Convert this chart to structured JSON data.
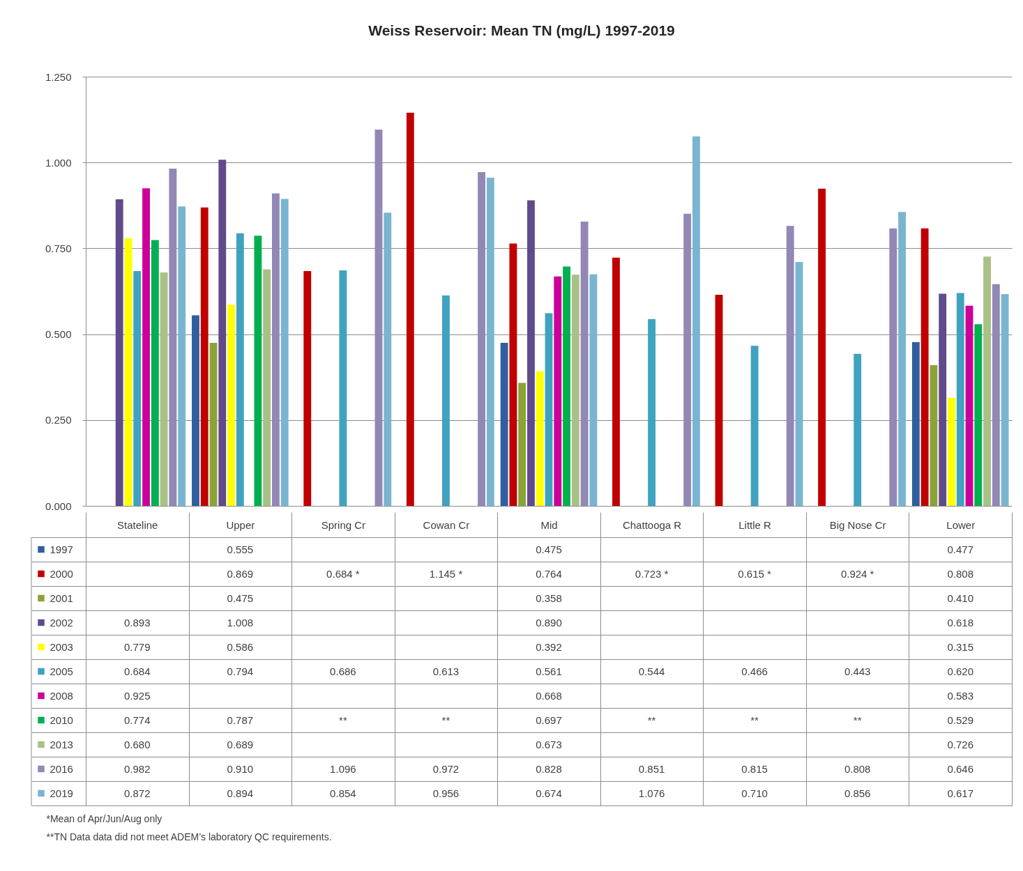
{
  "chart_data": {
    "type": "bar",
    "title": "Weiss Reservoir: Mean TN (mg/L) 1997-2019",
    "categories": [
      "Stateline",
      "Upper",
      "Spring Cr",
      "Cowan Cr",
      "Mid",
      "Chattooga R",
      "Little R",
      "Big Nose Cr",
      "Lower"
    ],
    "series": [
      {
        "name": "1997",
        "color": "#2f5f9e",
        "values": [
          null,
          0.555,
          null,
          null,
          0.475,
          null,
          null,
          null,
          0.477
        ],
        "value_labels": [
          null,
          "0.555",
          null,
          null,
          "0.475",
          null,
          null,
          null,
          "0.477"
        ]
      },
      {
        "name": "2000",
        "color": "#c00000",
        "values": [
          null,
          0.869,
          0.684,
          1.145,
          0.764,
          0.723,
          0.615,
          0.924,
          0.808
        ],
        "value_labels": [
          null,
          "0.869",
          "0.684 *",
          "1.145 *",
          "0.764",
          "0.723 *",
          "0.615 *",
          "0.924 *",
          "0.808"
        ]
      },
      {
        "name": "2001",
        "color": "#8aa339",
        "values": [
          null,
          0.475,
          null,
          null,
          0.358,
          null,
          null,
          null,
          0.41
        ],
        "value_labels": [
          null,
          "0.475",
          null,
          null,
          "0.358",
          null,
          null,
          null,
          "0.410"
        ]
      },
      {
        "name": "2002",
        "color": "#5f4b8b",
        "values": [
          0.893,
          1.008,
          null,
          null,
          0.89,
          null,
          null,
          null,
          0.618
        ],
        "value_labels": [
          "0.893",
          "1.008",
          null,
          null,
          "0.890",
          null,
          null,
          null,
          "0.618"
        ]
      },
      {
        "name": "2003",
        "color": "#ffff00",
        "values": [
          0.779,
          0.586,
          null,
          null,
          0.392,
          null,
          null,
          null,
          0.315
        ],
        "value_labels": [
          "0.779",
          "0.586",
          null,
          null,
          "0.392",
          null,
          null,
          null,
          "0.315"
        ]
      },
      {
        "name": "2005",
        "color": "#3fa3bf",
        "values": [
          0.684,
          0.794,
          0.686,
          0.613,
          0.561,
          0.544,
          0.466,
          0.443,
          0.62
        ],
        "value_labels": [
          "0.684",
          "0.794",
          "0.686",
          "0.613",
          "0.561",
          "0.544",
          "0.466",
          "0.443",
          "0.620"
        ]
      },
      {
        "name": "2008",
        "color": "#cc0099",
        "values": [
          0.925,
          null,
          null,
          null,
          0.668,
          null,
          null,
          null,
          0.583
        ],
        "value_labels": [
          "0.925",
          null,
          null,
          null,
          "0.668",
          null,
          null,
          null,
          "0.583"
        ]
      },
      {
        "name": "2010",
        "color": "#00b050",
        "values": [
          0.774,
          0.787,
          null,
          null,
          0.697,
          null,
          null,
          null,
          0.529
        ],
        "value_labels": [
          "0.774",
          "0.787",
          "**",
          "**",
          "0.697",
          "**",
          "**",
          "**",
          "0.529"
        ]
      },
      {
        "name": "2013",
        "color": "#a9c087",
        "values": [
          0.68,
          0.689,
          null,
          null,
          0.673,
          null,
          null,
          null,
          0.726
        ],
        "value_labels": [
          "0.680",
          "0.689",
          null,
          null,
          "0.673",
          null,
          null,
          null,
          "0.726"
        ]
      },
      {
        "name": "2016",
        "color": "#9287b5",
        "values": [
          0.982,
          0.91,
          1.096,
          0.972,
          0.828,
          0.851,
          0.815,
          0.808,
          0.646
        ],
        "value_labels": [
          "0.982",
          "0.910",
          "1.096",
          "0.972",
          "0.828",
          "0.851",
          "0.815",
          "0.808",
          "0.646"
        ]
      },
      {
        "name": "2019",
        "color": "#79b5d0",
        "values": [
          0.872,
          0.894,
          0.854,
          0.956,
          0.674,
          1.076,
          0.71,
          0.856,
          0.617
        ],
        "value_labels": [
          "0.872",
          "0.894",
          "0.854",
          "0.956",
          "0.674",
          "1.076",
          "0.710",
          "0.856",
          "0.617"
        ]
      }
    ],
    "ylim": [
      0,
      1.25
    ],
    "yticks": [
      {
        "value": 0,
        "label": "0.000"
      },
      {
        "value": 0.25,
        "label": "0.250"
      },
      {
        "value": 0.5,
        "label": "0.500"
      },
      {
        "value": 0.75,
        "label": "0.750"
      },
      {
        "value": 1,
        "label": "1.000"
      },
      {
        "value": 1.25,
        "label": "1.250"
      }
    ],
    "grid": "y",
    "legend": "bottom",
    "annotations": [
      "*Mean of Apr/Jun/Aug only",
      "**TN Data data did not meet ADEM’s laboratory QC requirements."
    ]
  }
}
